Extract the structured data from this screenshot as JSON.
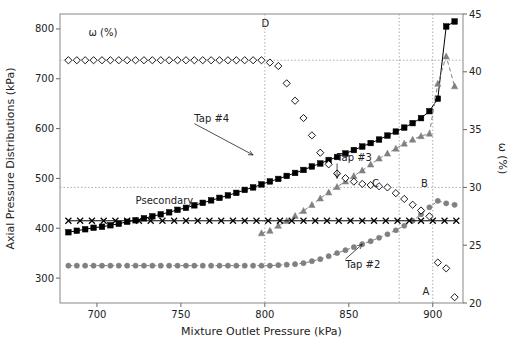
{
  "chart_data": {
    "type": "line",
    "xlabel": "Mixture Outlet Pressure (kPa)",
    "ylabel": "Axial Pressure Distributions (kPa)",
    "y2label": "ω (%)",
    "xlim": [
      678,
      918
    ],
    "ylim": [
      250,
      830
    ],
    "y2lim": [
      20,
      45
    ],
    "xticks": [
      700,
      750,
      800,
      850,
      900
    ],
    "yticks": [
      300,
      400,
      500,
      600,
      700,
      800
    ],
    "y2ticks": [
      20,
      25,
      30,
      35,
      40,
      45
    ],
    "grid": false,
    "series": [
      {
        "color": "black",
        "marker": "square",
        "line_style": "solid",
        "x": [
          683,
          688,
          693,
          698,
          703,
          708,
          713,
          718,
          723,
          728,
          733,
          738,
          743,
          748,
          753,
          758,
          763,
          768,
          773,
          778,
          783,
          788,
          793,
          798,
          803,
          808,
          813,
          818,
          823,
          828,
          833,
          838,
          843,
          848,
          853,
          858,
          863,
          868,
          873,
          878,
          883,
          888,
          893,
          898,
          903,
          908,
          913
        ],
        "values": [
          392,
          395,
          398,
          401,
          403,
          406,
          409,
          413,
          416,
          420,
          424,
          428,
          432,
          437,
          441,
          446,
          451,
          456,
          461,
          466,
          471,
          477,
          482,
          488,
          494,
          499,
          505,
          511,
          517,
          524,
          530,
          537,
          543,
          550,
          557,
          564,
          571,
          578,
          586,
          594,
          602,
          611,
          621,
          635,
          660,
          805,
          815
        ]
      },
      {
        "color": "gray",
        "marker": "triangle",
        "line_style": "dashed",
        "x": [
          798,
          803,
          808,
          813,
          818,
          823,
          828,
          833,
          838,
          843,
          848,
          853,
          858,
          863,
          868,
          873,
          878,
          883,
          888,
          893,
          898,
          903,
          908,
          913
        ],
        "values": [
          390,
          395,
          405,
          415,
          425,
          435,
          447,
          460,
          472,
          483,
          494,
          505,
          516,
          528,
          540,
          550,
          560,
          570,
          578,
          585,
          590,
          690,
          745,
          685
        ]
      },
      {
        "color": "gray",
        "marker": "circle",
        "line_style": "dashed",
        "x": [
          683,
          688,
          693,
          698,
          703,
          708,
          713,
          718,
          723,
          728,
          733,
          738,
          743,
          748,
          753,
          758,
          763,
          768,
          773,
          778,
          783,
          788,
          793,
          798,
          803,
          808,
          813,
          818,
          823,
          828,
          833,
          838,
          843,
          848,
          853,
          858,
          863,
          868,
          873,
          878,
          883,
          888,
          893,
          898,
          903,
          908,
          913
        ],
        "values": [
          325,
          325,
          325,
          325,
          325,
          325,
          325,
          325,
          325,
          325,
          325,
          325,
          325,
          325,
          325,
          325,
          325,
          325,
          325,
          325,
          325,
          325,
          325,
          325,
          325,
          326,
          327,
          328,
          330,
          334,
          338,
          344,
          350,
          356,
          362,
          368,
          374,
          381,
          388,
          396,
          405,
          415,
          428,
          442,
          455,
          450,
          447
        ]
      },
      {
        "color": "black",
        "marker": "x",
        "line_style": "solid",
        "x": [
          683,
          690,
          697,
          704,
          711,
          718,
          725,
          732,
          739,
          746,
          753,
          760,
          767,
          774,
          781,
          788,
          795,
          802,
          809,
          816,
          823,
          830,
          837,
          844,
          851,
          858,
          865,
          872,
          879,
          886,
          893,
          900,
          907,
          914
        ],
        "values": [
          415,
          415,
          415,
          415,
          415,
          415,
          415,
          415,
          415,
          415,
          415,
          415,
          415,
          415,
          415,
          415,
          415,
          415,
          415,
          415,
          415,
          415,
          415,
          415,
          415,
          415,
          415,
          415,
          415,
          415,
          415,
          415,
          415,
          415
        ]
      },
      {
        "type": "scatter",
        "axis": "y2",
        "color": "black",
        "marker": "diamond",
        "line_style": "none",
        "x": [
          683,
          688,
          693,
          698,
          703,
          708,
          713,
          718,
          723,
          728,
          733,
          738,
          743,
          748,
          753,
          758,
          763,
          768,
          773,
          778,
          783,
          788,
          793,
          798,
          803,
          808,
          813,
          818,
          823,
          828,
          833,
          838,
          843,
          848,
          853,
          858,
          863,
          868,
          873,
          878,
          883,
          888,
          893,
          898,
          903,
          908,
          913
        ],
        "values": [
          41.0,
          41.0,
          41.0,
          41.0,
          41.0,
          41.0,
          41.0,
          41.0,
          41.0,
          41.0,
          41.0,
          41.0,
          41.0,
          41.0,
          41.0,
          41.0,
          41.0,
          41.0,
          41.0,
          41.0,
          41.0,
          41.0,
          41.0,
          41.0,
          40.8,
          40.5,
          39.0,
          37.5,
          36.0,
          34.5,
          33.0,
          32.0,
          31.2,
          30.8,
          30.5,
          30.3,
          30.2,
          30.1,
          30.0,
          29.5,
          29.0,
          28.5,
          28.0,
          27.5,
          23.5,
          23.0,
          20.5
        ]
      }
    ],
    "vlines": [
      800,
      880,
      900
    ],
    "hlines": [
      {
        "value": 41.0,
        "axis": "y2"
      },
      {
        "value": 30.0,
        "axis": "y2"
      }
    ],
    "annotations": [
      {
        "text": "Tap #4",
        "x": 758,
        "y": 610,
        "arrow_to": [
          793,
          547
        ]
      },
      {
        "text": "Tap #3",
        "x": 843,
        "y": 530,
        "arrow_to": [
          843,
          500
        ]
      },
      {
        "text": "Tap #2",
        "x": 848,
        "y": 338,
        "arrow_to": [
          858,
          368
        ]
      },
      {
        "text": "Psecondary",
        "x": 723,
        "y": 445
      },
      {
        "text": "ω (%)",
        "x": 695,
        "y": 782
      },
      {
        "text": "D",
        "x": 798,
        "y": 800
      },
      {
        "text": "C",
        "x": 868,
        "y": 490
      },
      {
        "text": "B",
        "x": 893,
        "y": 490
      },
      {
        "text": "A",
        "x": 898,
        "y": 263
      }
    ]
  }
}
